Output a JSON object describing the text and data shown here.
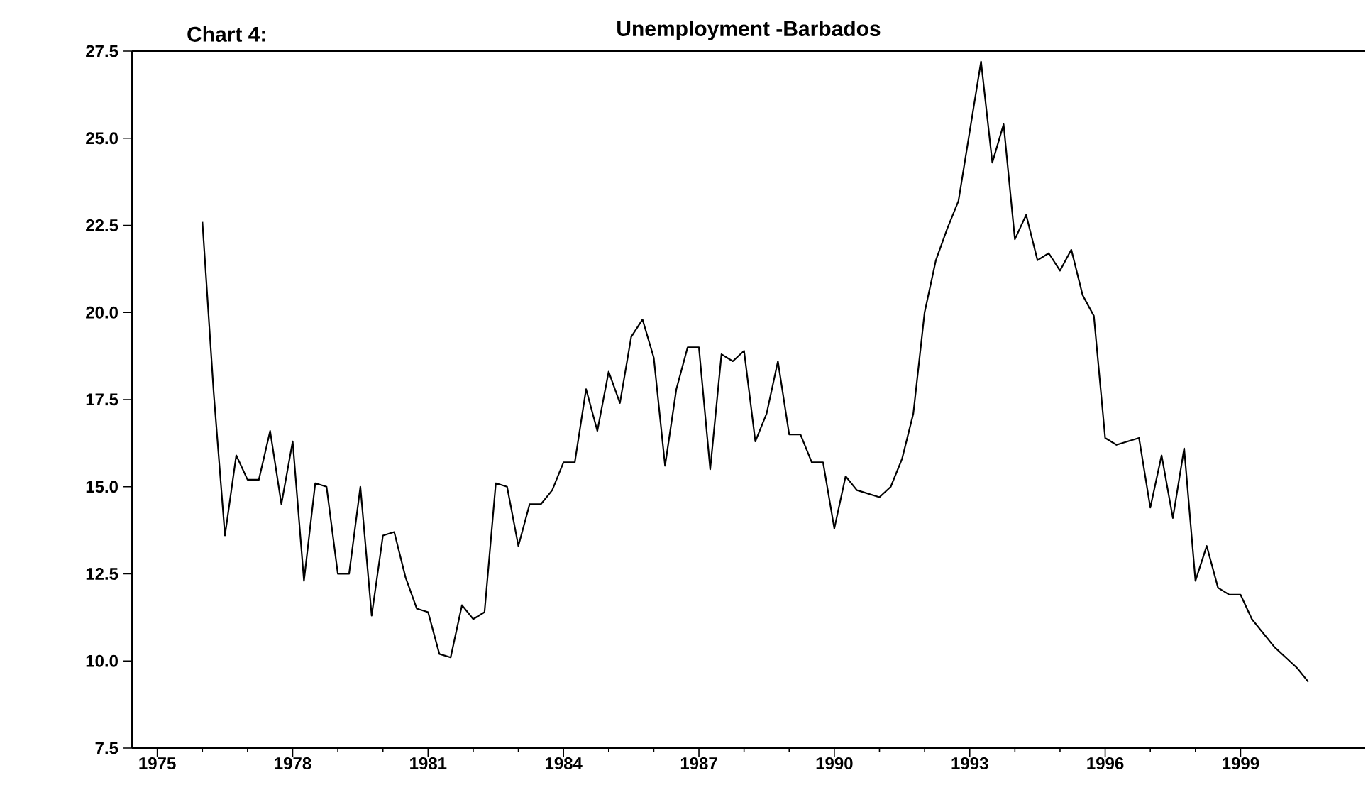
{
  "chart_data": {
    "type": "line",
    "title": "Unemployment -Barbados",
    "annotations": [
      "Chart 4:"
    ],
    "color": "#000000",
    "x": [
      1976,
      1976.25,
      1976.5,
      1976.75,
      1977,
      1977.25,
      1977.5,
      1977.75,
      1978,
      1978.25,
      1978.5,
      1978.75,
      1979,
      1979.25,
      1979.5,
      1979.75,
      1980,
      1980.25,
      1980.5,
      1980.75,
      1981,
      1981.25,
      1981.5,
      1981.75,
      1982,
      1982.25,
      1982.5,
      1982.75,
      1983,
      1983.25,
      1983.5,
      1983.75,
      1984,
      1984.25,
      1984.5,
      1984.75,
      1985,
      1985.25,
      1985.5,
      1985.75,
      1986,
      1986.25,
      1986.5,
      1986.75,
      1987,
      1987.25,
      1987.5,
      1987.75,
      1988,
      1988.25,
      1988.5,
      1988.75,
      1989,
      1989.25,
      1989.5,
      1989.75,
      1990,
      1990.25,
      1990.5,
      1990.75,
      1991,
      1991.25,
      1991.5,
      1991.75,
      1992,
      1992.25,
      1992.5,
      1992.75,
      1993,
      1993.25,
      1993.5,
      1993.75,
      1994,
      1994.25,
      1994.5,
      1994.75,
      1995,
      1995.25,
      1995.5,
      1995.75,
      1996,
      1996.25,
      1996.5,
      1996.75,
      1997,
      1997.25,
      1997.5,
      1997.75,
      1998,
      1998.25,
      1998.5,
      1998.75,
      1999,
      1999.25,
      1999.5,
      1999.75,
      2000,
      2000.25,
      2000.5
    ],
    "values": [
      22.6,
      17.7,
      13.6,
      15.9,
      15.2,
      15.2,
      16.6,
      14.5,
      16.3,
      12.3,
      15.1,
      15.0,
      12.5,
      12.5,
      15.0,
      11.3,
      13.6,
      13.7,
      12.4,
      11.5,
      11.4,
      10.2,
      10.1,
      11.6,
      11.2,
      11.4,
      15.1,
      15.0,
      13.3,
      14.5,
      14.5,
      14.9,
      15.7,
      15.7,
      17.8,
      16.6,
      18.3,
      17.4,
      19.3,
      19.8,
      18.7,
      15.6,
      17.8,
      19.0,
      19.0,
      15.5,
      18.8,
      18.6,
      18.9,
      16.3,
      17.1,
      18.6,
      16.5,
      16.5,
      15.7,
      15.7,
      13.8,
      15.3,
      14.9,
      14.8,
      14.7,
      15.0,
      15.8,
      17.1,
      20.0,
      21.5,
      22.4,
      23.2,
      25.2,
      27.2,
      24.3,
      25.4,
      22.1,
      22.8,
      21.5,
      21.7,
      21.2,
      21.8,
      20.5,
      19.9,
      16.4,
      16.2,
      16.3,
      16.4,
      14.4,
      15.9,
      14.1,
      16.1,
      12.3,
      13.3,
      12.1,
      11.9,
      11.9,
      11.2,
      10.8,
      10.4,
      10.1,
      9.8,
      9.4
    ],
    "xlim": [
      1974.44,
      2001.76
    ],
    "ylim": [
      7.5,
      27.5
    ],
    "xticks": [
      1975,
      1978,
      1981,
      1984,
      1987,
      1990,
      1993,
      1996,
      1999
    ],
    "yticks": [
      {
        "value": 7.5,
        "label": "7.5"
      },
      {
        "value": 10,
        "label": "10.0"
      },
      {
        "value": 12.5,
        "label": "12.5"
      },
      {
        "value": 15,
        "label": "15.0"
      },
      {
        "value": 17.5,
        "label": "17.5"
      },
      {
        "value": 20,
        "label": "20.0"
      },
      {
        "value": 22.5,
        "label": "22.5"
      },
      {
        "value": 25,
        "label": "25.0"
      },
      {
        "value": 27.5,
        "label": "27.5"
      }
    ]
  }
}
